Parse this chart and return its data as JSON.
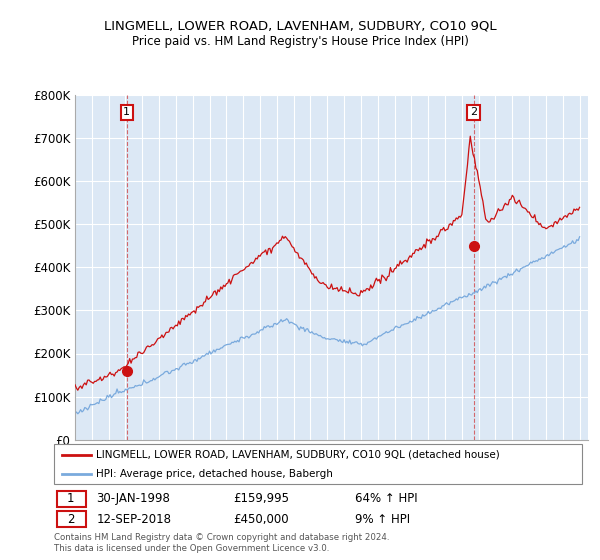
{
  "title": "LINGMELL, LOWER ROAD, LAVENHAM, SUDBURY, CO10 9QL",
  "subtitle": "Price paid vs. HM Land Registry's House Price Index (HPI)",
  "legend_line1": "LINGMELL, LOWER ROAD, LAVENHAM, SUDBURY, CO10 9QL (detached house)",
  "legend_line2": "HPI: Average price, detached house, Babergh",
  "sale1_date": "30-JAN-1998",
  "sale1_price": "£159,995",
  "sale1_hpi": "64% ↑ HPI",
  "sale1_year": 1998.08,
  "sale1_value": 159995,
  "sale2_date": "12-SEP-2018",
  "sale2_price": "£450,000",
  "sale2_hpi": "9% ↑ HPI",
  "sale2_year": 2018.7,
  "sale2_value": 450000,
  "red_color": "#cc1111",
  "blue_color": "#7aaadd",
  "bg_color": "#dce8f5",
  "footer": "Contains HM Land Registry data © Crown copyright and database right 2024.\nThis data is licensed under the Open Government Licence v3.0.",
  "ylim": [
    0,
    800000
  ],
  "xlim_start": 1995.0,
  "xlim_end": 2025.5
}
